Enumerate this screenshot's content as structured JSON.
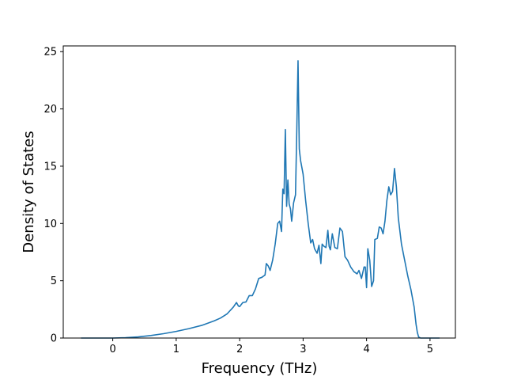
{
  "chart_data": {
    "type": "line",
    "title": "",
    "xlabel": "Frequency (THz)",
    "ylabel": "Density of States",
    "xlim": [
      -0.78,
      5.4
    ],
    "ylim": [
      0,
      25.5
    ],
    "x_ticks": [
      0,
      1,
      2,
      3,
      4,
      5
    ],
    "y_ticks": [
      0,
      5,
      10,
      15,
      20,
      25
    ],
    "grid": false,
    "legend": "none",
    "series": [
      {
        "color": "#1f77b4",
        "points": [
          [
            -0.5,
            0.0
          ],
          [
            0.0,
            0.0
          ],
          [
            0.2,
            0.03
          ],
          [
            0.4,
            0.1
          ],
          [
            0.6,
            0.22
          ],
          [
            0.8,
            0.38
          ],
          [
            1.0,
            0.58
          ],
          [
            1.2,
            0.82
          ],
          [
            1.4,
            1.1
          ],
          [
            1.6,
            1.5
          ],
          [
            1.7,
            1.75
          ],
          [
            1.8,
            2.1
          ],
          [
            1.9,
            2.7
          ],
          [
            1.95,
            3.1
          ],
          [
            1.98,
            2.8
          ],
          [
            2.0,
            2.75
          ],
          [
            2.05,
            3.1
          ],
          [
            2.1,
            3.15
          ],
          [
            2.15,
            3.7
          ],
          [
            2.2,
            3.7
          ],
          [
            2.25,
            4.3
          ],
          [
            2.3,
            5.2
          ],
          [
            2.35,
            5.3
          ],
          [
            2.4,
            5.5
          ],
          [
            2.42,
            6.5
          ],
          [
            2.45,
            6.3
          ],
          [
            2.48,
            5.9
          ],
          [
            2.52,
            6.8
          ],
          [
            2.56,
            8.2
          ],
          [
            2.6,
            10.0
          ],
          [
            2.63,
            10.2
          ],
          [
            2.66,
            9.3
          ],
          [
            2.68,
            13.0
          ],
          [
            2.7,
            12.6
          ],
          [
            2.72,
            18.2
          ],
          [
            2.74,
            11.5
          ],
          [
            2.76,
            13.8
          ],
          [
            2.78,
            11.7
          ],
          [
            2.8,
            11.3
          ],
          [
            2.82,
            10.2
          ],
          [
            2.85,
            11.8
          ],
          [
            2.88,
            12.5
          ],
          [
            2.9,
            18.0
          ],
          [
            2.92,
            24.2
          ],
          [
            2.94,
            16.5
          ],
          [
            2.96,
            15.5
          ],
          [
            3.0,
            14.3
          ],
          [
            3.04,
            12.0
          ],
          [
            3.08,
            10.0
          ],
          [
            3.12,
            8.3
          ],
          [
            3.15,
            8.6
          ],
          [
            3.18,
            7.8
          ],
          [
            3.22,
            7.4
          ],
          [
            3.25,
            8.1
          ],
          [
            3.28,
            6.5
          ],
          [
            3.3,
            8.2
          ],
          [
            3.33,
            8.0
          ],
          [
            3.36,
            7.9
          ],
          [
            3.39,
            9.4
          ],
          [
            3.41,
            8.0
          ],
          [
            3.43,
            7.7
          ],
          [
            3.46,
            9.1
          ],
          [
            3.5,
            7.9
          ],
          [
            3.54,
            7.8
          ],
          [
            3.58,
            9.6
          ],
          [
            3.62,
            9.3
          ],
          [
            3.66,
            7.1
          ],
          [
            3.7,
            6.8
          ],
          [
            3.75,
            6.2
          ],
          [
            3.8,
            5.8
          ],
          [
            3.85,
            5.6
          ],
          [
            3.88,
            5.9
          ],
          [
            3.92,
            5.2
          ],
          [
            3.96,
            6.2
          ],
          [
            3.98,
            6.2
          ],
          [
            4.0,
            4.4
          ],
          [
            4.02,
            7.8
          ],
          [
            4.05,
            6.8
          ],
          [
            4.08,
            4.5
          ],
          [
            4.11,
            5.0
          ],
          [
            4.13,
            8.6
          ],
          [
            4.17,
            8.7
          ],
          [
            4.2,
            9.7
          ],
          [
            4.23,
            9.6
          ],
          [
            4.26,
            9.1
          ],
          [
            4.29,
            10.2
          ],
          [
            4.32,
            12.0
          ],
          [
            4.35,
            13.2
          ],
          [
            4.38,
            12.5
          ],
          [
            4.41,
            12.8
          ],
          [
            4.44,
            14.8
          ],
          [
            4.47,
            13.2
          ],
          [
            4.5,
            10.5
          ],
          [
            4.55,
            8.2
          ],
          [
            4.6,
            6.8
          ],
          [
            4.65,
            5.4
          ],
          [
            4.7,
            4.2
          ],
          [
            4.75,
            2.7
          ],
          [
            4.78,
            1.2
          ],
          [
            4.8,
            0.5
          ],
          [
            4.82,
            0.1
          ],
          [
            4.85,
            0.0
          ],
          [
            5.0,
            0.0
          ],
          [
            5.15,
            0.0
          ]
        ]
      }
    ]
  }
}
